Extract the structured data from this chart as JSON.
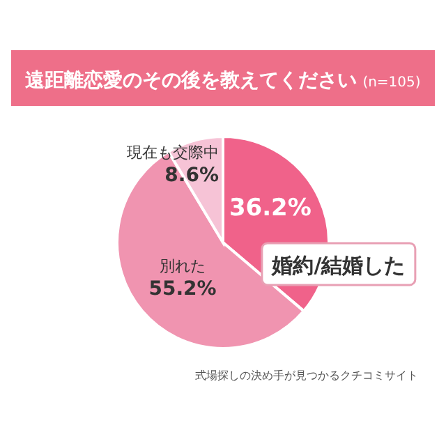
{
  "chart_data": {
    "type": "pie",
    "title": "遠距離恋愛のその後を教えてください",
    "subtitle": "(n=105)",
    "categories": [
      "婚約/結婚した",
      "別れた",
      "現在も交際中"
    ],
    "values": [
      36.2,
      55.2,
      8.6
    ],
    "colors": [
      "#f0628a",
      "#f094b0",
      "#f6c3d6"
    ],
    "value_labels": [
      "36.2%",
      "55.2%",
      "8.6%"
    ],
    "annotations": [
      "式場探しの決め手が見つかるクチコミサイト"
    ]
  }
}
